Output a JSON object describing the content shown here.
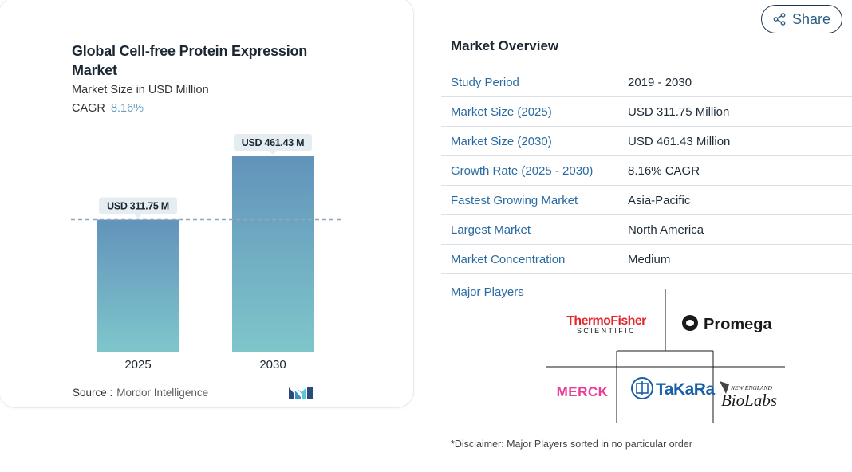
{
  "chart": {
    "title": "Global Cell-free Protein Expression Market",
    "subtitle": "Market Size in USD Million",
    "cagr_label": "CAGR",
    "cagr_value": "8.16%",
    "source_label": "Source :",
    "source_value": "Mordor Intelligence"
  },
  "chart_data": {
    "type": "bar",
    "categories": [
      "2025",
      "2030"
    ],
    "values": [
      311.75,
      461.43
    ],
    "data_labels": [
      "USD 311.75 M",
      "USD 461.43 M"
    ],
    "title": "Global Cell-free Protein Expression Market",
    "subtitle": "Market Size in USD Million",
    "reference_line": 311.75,
    "colors": {
      "bar_top": "#6293bb",
      "bar_bottom": "#7fc6cb",
      "reference": "#8fa8bd",
      "label_bg": "#e5edf0"
    }
  },
  "share": {
    "label": "Share",
    "icon": "share-icon"
  },
  "overview": {
    "title": "Market Overview",
    "rows": [
      {
        "label": "Study Period",
        "value": "2019 - 2030"
      },
      {
        "label": "Market Size (2025)",
        "value": "USD 311.75 Million"
      },
      {
        "label": "Market Size (2030)",
        "value": "USD 461.43 Million"
      },
      {
        "label": "Growth Rate (2025 - 2030)",
        "value": "8.16% CAGR"
      },
      {
        "label": "Fastest Growing Market",
        "value": "Asia-Pacific"
      },
      {
        "label": "Largest Market",
        "value": "North America"
      },
      {
        "label": "Market Concentration",
        "value": "Medium"
      }
    ]
  },
  "players": {
    "title": "Major Players",
    "logos": [
      {
        "name": "ThermoFisher",
        "sub": "SCIENTIFIC"
      },
      {
        "name": "Promega"
      },
      {
        "name": "MERCK"
      },
      {
        "name": "TaKaRa"
      },
      {
        "name": "NEW ENGLAND",
        "sub": "BioLabs"
      }
    ]
  },
  "disclaimer": "*Disclaimer: Major Players sorted in no particular order",
  "colors": {
    "link": "#2a6aa3",
    "accent": "#6a9fc4",
    "border": "#1d3a52"
  }
}
